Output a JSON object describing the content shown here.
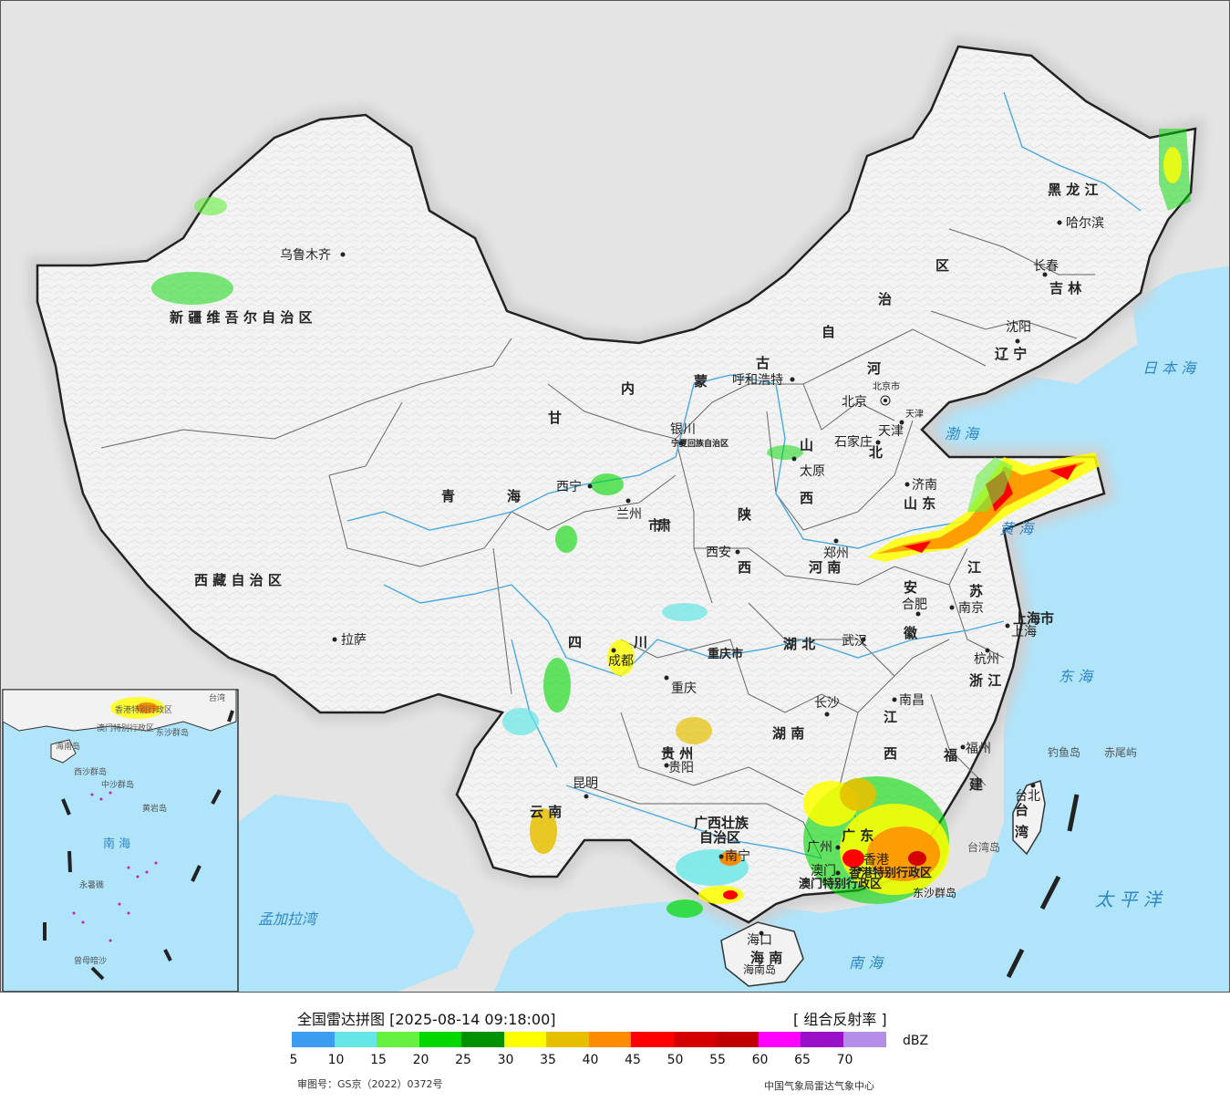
{
  "title": "全国雷达拼图 [2025-08-14 09:18:00]",
  "product": "[ 组合反射率 ]",
  "unit": "dBZ",
  "scale_ticks": [
    "5",
    "10",
    "15",
    "20",
    "25",
    "30",
    "35",
    "40",
    "45",
    "50",
    "55",
    "60",
    "65",
    "70"
  ],
  "scale_colors": [
    "#3c9cf0",
    "#66e6e6",
    "#66f040",
    "#00d800",
    "#009000",
    "#ffff00",
    "#e6c000",
    "#ff8c00",
    "#ff0000",
    "#d40000",
    "#c00000",
    "#ff00ff",
    "#9810c8",
    "#b48ee6"
  ],
  "review_no": "审图号：GS京（2022）0372号",
  "agency": "中国气象局雷达气象中心",
  "colors": {
    "land": "#f2f2f2",
    "sea": "#b0e4fa",
    "foreign": "#e4e4e4",
    "border": "#222222",
    "water": "#4aa8e0"
  },
  "provinces": [
    {
      "id": "xinjiang",
      "label": "新 疆 维 吾 尔 自 治 区"
    },
    {
      "id": "xizang",
      "label": "西 藏 自 治 区"
    },
    {
      "id": "qinghai1",
      "label": "青"
    },
    {
      "id": "qinghai2",
      "label": "海"
    },
    {
      "id": "gansu1",
      "label": "甘"
    },
    {
      "id": "gansu2",
      "label": "肃"
    },
    {
      "id": "nmg1",
      "label": "内"
    },
    {
      "id": "nmg2",
      "label": "蒙"
    },
    {
      "id": "nmg3",
      "label": "古"
    },
    {
      "id": "nmg4",
      "label": "自"
    },
    {
      "id": "nmg5",
      "label": "治"
    },
    {
      "id": "nmg6",
      "label": "区"
    },
    {
      "id": "hlj",
      "label": "黑 龙 江"
    },
    {
      "id": "jilin",
      "label": "吉 林"
    },
    {
      "id": "liaoning",
      "label": "辽 宁"
    },
    {
      "id": "hebei1",
      "label": "河"
    },
    {
      "id": "hebei2",
      "label": "北"
    },
    {
      "id": "shanxi1",
      "label": "山"
    },
    {
      "id": "shanxi2",
      "label": "西"
    },
    {
      "id": "shaanxi1",
      "label": "陕"
    },
    {
      "id": "shaanxi2",
      "label": "西"
    },
    {
      "id": "shandong",
      "label": "山 东"
    },
    {
      "id": "henan",
      "label": "河 南"
    },
    {
      "id": "jiangsu1",
      "label": "江"
    },
    {
      "id": "jiangsu2",
      "label": "苏"
    },
    {
      "id": "anhui1",
      "label": "安"
    },
    {
      "id": "anhui2",
      "label": "徽"
    },
    {
      "id": "shanghai",
      "label": "上海市"
    },
    {
      "id": "hubei",
      "label": "湖 北"
    },
    {
      "id": "sichuan1",
      "label": "四"
    },
    {
      "id": "sichuan2",
      "label": "川"
    },
    {
      "id": "chongqing",
      "label": "重庆市"
    },
    {
      "id": "zhejiang",
      "label": "浙 江"
    },
    {
      "id": "jiangxi1",
      "label": "江"
    },
    {
      "id": "jiangxi2",
      "label": "西"
    },
    {
      "id": "hunan",
      "label": "湖 南"
    },
    {
      "id": "guizhou",
      "label": "贵 州"
    },
    {
      "id": "fujian1",
      "label": "福"
    },
    {
      "id": "fujian2",
      "label": "建"
    },
    {
      "id": "yunnan",
      "label": "云 南"
    },
    {
      "id": "guangxi1",
      "label": "广西壮族"
    },
    {
      "id": "guangxi2",
      "label": "自治区"
    },
    {
      "id": "guangdong",
      "label": "广 东"
    },
    {
      "id": "hainan",
      "label": "海 南"
    },
    {
      "id": "taiwan1",
      "label": "台"
    },
    {
      "id": "taiwan2",
      "label": "湾"
    },
    {
      "id": "ningxia",
      "label": "宁夏回族自治区"
    },
    {
      "id": "hk",
      "label": "香港特别行政区"
    },
    {
      "id": "mo",
      "label": "澳门特别行政区"
    },
    {
      "id": "ningxia_short",
      "label": "市"
    }
  ],
  "cities": [
    {
      "id": "urumqi",
      "label": "乌鲁木齐"
    },
    {
      "id": "lhasa",
      "label": "拉萨"
    },
    {
      "id": "xining",
      "label": "西宁"
    },
    {
      "id": "lanzhou",
      "label": "兰州"
    },
    {
      "id": "yinchuan",
      "label": "银川"
    },
    {
      "id": "hohhot",
      "label": "呼和浩特"
    },
    {
      "id": "harbin",
      "label": "哈尔滨"
    },
    {
      "id": "changchun",
      "label": "长春"
    },
    {
      "id": "shenyang",
      "label": "沈阳"
    },
    {
      "id": "beijing",
      "label": "北京"
    },
    {
      "id": "beijingshi",
      "label": "北京市"
    },
    {
      "id": "tianjin",
      "label": "天津"
    },
    {
      "id": "tianjinshi",
      "label": "天津"
    },
    {
      "id": "shijiazhuang",
      "label": "石家庄"
    },
    {
      "id": "taiyuan",
      "label": "太原"
    },
    {
      "id": "jinan",
      "label": "济南"
    },
    {
      "id": "zhengzhou",
      "label": "郑州"
    },
    {
      "id": "xian",
      "label": "西安"
    },
    {
      "id": "hefei",
      "label": "合肥"
    },
    {
      "id": "nanjing",
      "label": "南京"
    },
    {
      "id": "shanghaicity",
      "label": "上海"
    },
    {
      "id": "hangzhou",
      "label": "杭州"
    },
    {
      "id": "wuhan",
      "label": "武汉"
    },
    {
      "id": "chengdu",
      "label": "成都"
    },
    {
      "id": "chongqingcity",
      "label": "重庆"
    },
    {
      "id": "changsha",
      "label": "长沙"
    },
    {
      "id": "nanchang",
      "label": "南昌"
    },
    {
      "id": "fuzhou",
      "label": "福州"
    },
    {
      "id": "guiyang",
      "label": "贵阳"
    },
    {
      "id": "kunming",
      "label": "昆明"
    },
    {
      "id": "nanning",
      "label": "南宁"
    },
    {
      "id": "guangzhou",
      "label": "广州"
    },
    {
      "id": "macao",
      "label": "澳门"
    },
    {
      "id": "hongkong",
      "label": "香港"
    },
    {
      "id": "haikou",
      "label": "海口"
    },
    {
      "id": "taibei",
      "label": "台北"
    }
  ],
  "seas": [
    {
      "id": "japansea",
      "label": "日 本 海"
    },
    {
      "id": "bohai",
      "label": "渤 海"
    },
    {
      "id": "yellowsea",
      "label": "黄 海"
    },
    {
      "id": "eastsea",
      "label": "东 海"
    },
    {
      "id": "pacific",
      "label": "太 平 洋"
    },
    {
      "id": "southsea",
      "label": "南 海"
    },
    {
      "id": "bengal",
      "label": "孟加拉湾"
    }
  ],
  "islands": [
    {
      "id": "diaoyu",
      "label": "钓鱼岛"
    },
    {
      "id": "chiwei",
      "label": "赤尾屿"
    },
    {
      "id": "taiwandao",
      "label": "台湾岛"
    },
    {
      "id": "dongsha",
      "label": "东沙群岛"
    },
    {
      "id": "hainandao",
      "label": "海南岛"
    }
  ],
  "inset": {
    "labels": [
      "海南岛",
      "西沙群岛",
      "中沙群岛",
      "南 海",
      "永暑礁",
      "曾母暗沙",
      "东沙群岛",
      "黄岩岛",
      "澳门特别行政区",
      "香港特别行政区",
      "台湾"
    ]
  }
}
